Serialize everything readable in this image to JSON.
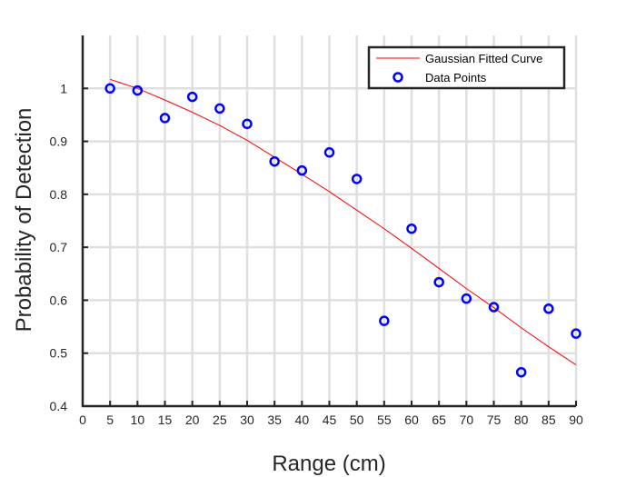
{
  "chart_data": {
    "type": "scatter",
    "xlabel": "Range (cm)",
    "ylabel": "Probability of Detection",
    "xlim": [
      0,
      90
    ],
    "ylim": [
      0.4,
      1.1
    ],
    "xticks": [
      0,
      5,
      10,
      15,
      20,
      25,
      30,
      35,
      40,
      45,
      50,
      55,
      60,
      65,
      70,
      75,
      80,
      85,
      90
    ],
    "yticks": [
      0.4,
      0.5,
      0.6,
      0.7,
      0.8,
      0.9,
      1
    ],
    "x_tick_labels": [
      "0",
      "5",
      "10",
      "15",
      "20",
      "25",
      "30",
      "35",
      "40",
      "45",
      "50",
      "55",
      "60",
      "65",
      "70",
      "75",
      "80",
      "85",
      "90"
    ],
    "y_tick_labels": [
      "0.4",
      "0.5",
      "0.6",
      "0.7",
      "0.8",
      "0.9",
      "1"
    ],
    "grid": true,
    "legend_position": "top-right",
    "series": [
      {
        "name": "Gaussian Fitted Curve",
        "kind": "line",
        "color": "#ff0000",
        "x": [
          5,
          10,
          15,
          20,
          25,
          30,
          35,
          40,
          45,
          50,
          55,
          60,
          65,
          70,
          75,
          80,
          85,
          90
        ],
        "y": [
          1.017,
          1.0,
          0.978,
          0.955,
          0.93,
          0.902,
          0.87,
          0.838,
          0.805,
          0.77,
          0.735,
          0.698,
          0.66,
          0.622,
          0.586,
          0.548,
          0.512,
          0.478
        ]
      },
      {
        "name": "Data Points",
        "kind": "scatter",
        "color": "#0000ff",
        "x": [
          5,
          10,
          15,
          20,
          25,
          30,
          35,
          40,
          45,
          50,
          55,
          60,
          65,
          70,
          75,
          80,
          85,
          90
        ],
        "y": [
          1.0,
          0.996,
          0.944,
          0.984,
          0.962,
          0.933,
          0.862,
          0.845,
          0.879,
          0.829,
          0.561,
          0.735,
          0.634,
          0.603,
          0.587,
          0.464,
          0.584,
          0.537
        ]
      }
    ]
  }
}
